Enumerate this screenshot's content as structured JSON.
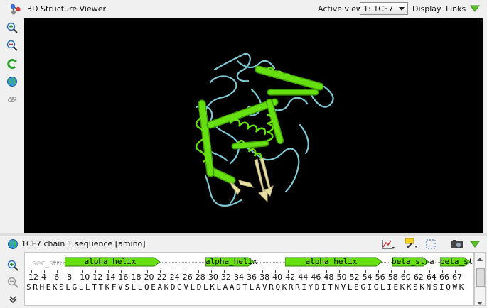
{
  "app": {
    "title": "3D Structure Viewer"
  },
  "header": {
    "active_view_label": "Active view:",
    "active_view_value": "1: 1CF7",
    "display_label": "Display",
    "links_label": "Links"
  },
  "left_toolbar": {
    "icons": [
      "zoom-in-icon",
      "zoom-out-icon",
      "rotate-reset-icon",
      "globe-icon",
      "link-icon"
    ]
  },
  "sequence_panel": {
    "title": "1CF7 chain 1 sequence [amino]",
    "track_label": "sec_stru",
    "ruler": [
      "12",
      "4",
      "6",
      "8",
      "10",
      "12",
      "14",
      "16",
      "18",
      "20",
      "22",
      "24",
      "26",
      "28",
      "30",
      "32",
      "34",
      "36",
      "38",
      "40",
      "42",
      "44",
      "46",
      "48",
      "50",
      "52",
      "54",
      "56",
      "58",
      "60",
      "62",
      "64",
      "66",
      "67"
    ],
    "sequence": "SRHEKSLGLLTTKFVSLLQEAKDGVLDLKLAADTLAVRQKRRIYDITNVLEGIGLIEKKSKNSIQWK",
    "features": [
      {
        "label": "alpha helix"
      },
      {
        "label": "alpha_helix"
      },
      {
        "label": "alpha helix"
      },
      {
        "label": "beta_stra"
      },
      {
        "label": "beta_st"
      }
    ]
  },
  "colors": {
    "helix": "#66e010",
    "helix_dark": "#3f9f06",
    "coil": "#7ec9d6",
    "strand": "#e8dfa4",
    "viewport_bg": "#000000"
  }
}
